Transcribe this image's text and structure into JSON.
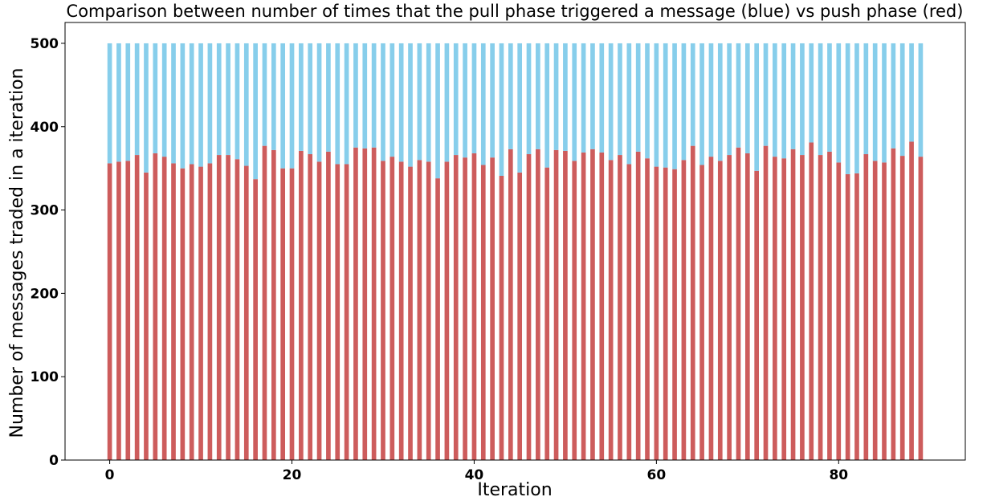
{
  "chart_data": {
    "type": "bar",
    "stacked": true,
    "title": "Comparison between number of times that the pull phase triggered a message (blue) vs push phase (red)",
    "xlabel": "Iteration",
    "ylabel": "Number of messages traded in a iteration",
    "xlim": [
      -4.9,
      93.9
    ],
    "ylim": [
      0,
      525
    ],
    "x_ticks": [
      0,
      20,
      40,
      60,
      80
    ],
    "y_ticks": [
      0,
      100,
      200,
      300,
      400,
      500
    ],
    "grid": false,
    "legend": "none",
    "x": [
      0,
      1,
      2,
      3,
      4,
      5,
      6,
      7,
      8,
      9,
      10,
      11,
      12,
      13,
      14,
      15,
      16,
      17,
      18,
      19,
      20,
      21,
      22,
      23,
      24,
      25,
      26,
      27,
      28,
      29,
      30,
      31,
      32,
      33,
      34,
      35,
      36,
      37,
      38,
      39,
      40,
      41,
      42,
      43,
      44,
      45,
      46,
      47,
      48,
      49,
      50,
      51,
      52,
      53,
      54,
      55,
      56,
      57,
      58,
      59,
      60,
      61,
      62,
      63,
      64,
      65,
      66,
      67,
      68,
      69,
      70,
      71,
      72,
      73,
      74,
      75,
      76,
      77,
      78,
      79,
      80,
      81,
      82,
      83,
      84,
      85,
      86,
      87,
      88,
      89
    ],
    "total": 500,
    "series": [
      {
        "color": "#cd5c5c",
        "values": [
          356,
          358,
          359,
          366,
          345,
          368,
          364,
          356,
          350,
          355,
          352,
          356,
          366,
          366,
          361,
          353,
          337,
          377,
          372,
          350,
          350,
          371,
          367,
          358,
          370,
          355,
          355,
          375,
          374,
          375,
          359,
          364,
          358,
          352,
          360,
          358,
          338,
          358,
          366,
          363,
          368,
          354,
          363,
          341,
          373,
          345,
          367,
          373,
          351,
          372,
          371,
          359,
          369,
          373,
          369,
          360,
          366,
          355,
          370,
          362,
          352,
          351,
          349,
          360,
          377,
          354,
          364,
          359,
          366,
          375,
          368,
          347,
          377,
          364,
          362,
          373,
          366,
          381,
          366,
          370,
          357,
          343,
          344,
          367,
          359,
          357,
          374,
          365,
          382,
          364
        ]
      },
      {
        "color": "#87ceeb",
        "values": [
          144,
          142,
          141,
          134,
          155,
          132,
          136,
          144,
          150,
          145,
          148,
          144,
          134,
          134,
          139,
          147,
          163,
          123,
          128,
          150,
          150,
          129,
          133,
          142,
          130,
          145,
          145,
          125,
          126,
          125,
          141,
          136,
          142,
          148,
          140,
          142,
          162,
          142,
          134,
          137,
          132,
          146,
          137,
          159,
          127,
          155,
          133,
          127,
          149,
          128,
          129,
          141,
          131,
          127,
          131,
          140,
          134,
          145,
          130,
          138,
          148,
          149,
          151,
          140,
          123,
          146,
          136,
          141,
          134,
          125,
          132,
          153,
          123,
          136,
          138,
          127,
          134,
          119,
          134,
          130,
          143,
          157,
          156,
          133,
          141,
          143,
          126,
          135,
          118,
          136
        ]
      }
    ]
  }
}
